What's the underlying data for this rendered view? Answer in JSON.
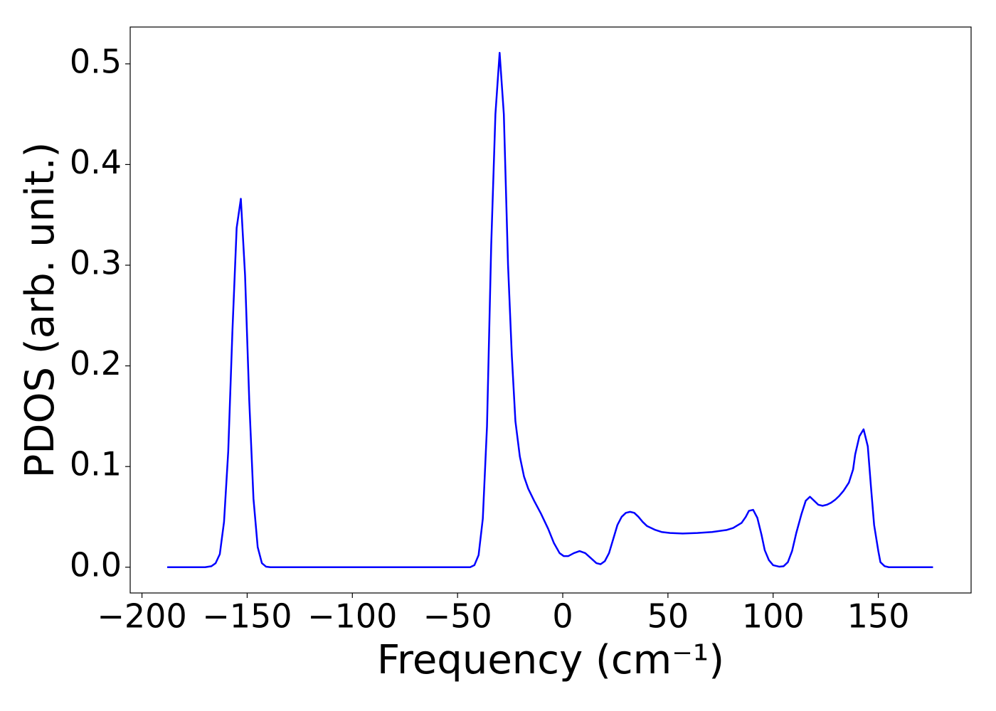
{
  "chart_data": {
    "type": "line",
    "x_label": "Frequency (cm⁻¹)",
    "y_label": "PDOS (arb. unit.)",
    "series": [
      {
        "color": "#0000ff",
        "x": [
          -188,
          -170,
          -167,
          -165,
          -163,
          -161,
          -159,
          -157,
          -155,
          -153,
          -151,
          -149,
          -147,
          -145,
          -143,
          -141,
          -139,
          -50,
          -44,
          -42,
          -40,
          -38,
          -36,
          -34,
          -32,
          -30,
          -28,
          -26,
          -24.2,
          -22.5,
          -20.4,
          -18.4,
          -16.4,
          -13.6,
          -10.3,
          -6.9,
          -4.2,
          -1.5,
          0.5,
          2.6,
          5.3,
          8,
          10.7,
          13.4,
          16,
          18,
          20,
          22,
          24,
          26,
          28,
          30,
          32,
          34,
          36,
          38,
          40,
          44,
          47,
          51,
          57,
          64,
          71,
          78,
          81,
          85,
          87,
          88.5,
          90.5,
          92.5,
          94.5,
          96,
          98,
          100,
          103,
          105,
          107,
          109,
          111,
          113.5,
          115.5,
          117.5,
          119.5,
          121.5,
          123.5,
          125.5,
          127.5,
          129.5,
          131.5,
          133.5,
          136,
          138,
          139,
          141,
          143,
          145,
          146.5,
          148,
          150,
          151,
          153,
          155,
          176
        ],
        "values": [
          0,
          0,
          0.001,
          0.004,
          0.013,
          0.045,
          0.115,
          0.235,
          0.337,
          0.366,
          0.29,
          0.165,
          0.068,
          0.02,
          0.004,
          0.0005,
          0,
          0,
          0,
          0.002,
          0.012,
          0.048,
          0.14,
          0.32,
          0.45,
          0.511,
          0.45,
          0.3,
          0.21,
          0.145,
          0.11,
          0.09,
          0.078,
          0.066,
          0.053,
          0.038,
          0.024,
          0.014,
          0.011,
          0.011,
          0.014,
          0.016,
          0.014,
          0.009,
          0.004,
          0.003,
          0.006,
          0.014,
          0.028,
          0.042,
          0.05,
          0.054,
          0.055,
          0.054,
          0.05,
          0.045,
          0.041,
          0.037,
          0.035,
          0.034,
          0.0335,
          0.034,
          0.035,
          0.037,
          0.039,
          0.044,
          0.05,
          0.056,
          0.057,
          0.049,
          0.032,
          0.017,
          0.007,
          0.002,
          0.0005,
          0.001,
          0.005,
          0.016,
          0.034,
          0.053,
          0.066,
          0.07,
          0.066,
          0.062,
          0.061,
          0.062,
          0.064,
          0.067,
          0.071,
          0.076,
          0.084,
          0.097,
          0.112,
          0.13,
          0.137,
          0.12,
          0.08,
          0.042,
          0.016,
          0.005,
          0.001,
          0,
          0
        ]
      }
    ],
    "xlim": [
      -205.6,
      194.1
    ],
    "ylim": [
      -0.0256,
      0.5366
    ],
    "xticks": [
      {
        "value": -200,
        "label": "−200"
      },
      {
        "value": -150,
        "label": "−150"
      },
      {
        "value": -100,
        "label": "−100"
      },
      {
        "value": -50,
        "label": "−50"
      },
      0,
      50,
      100,
      150
    ],
    "yticks": [
      {
        "value": 0,
        "label": "0.0"
      },
      0.1,
      0.2,
      0.3,
      0.4,
      0.5
    ],
    "grid": false
  }
}
